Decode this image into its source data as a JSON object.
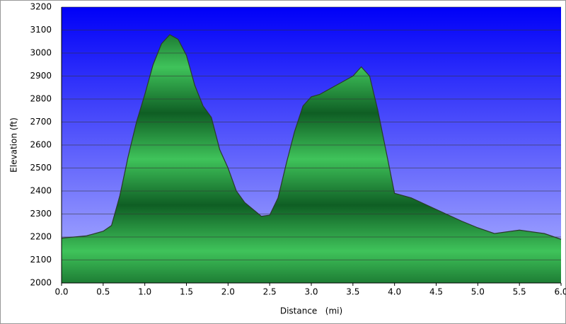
{
  "chart_data": {
    "type": "area",
    "x_label": "Distance   (mi)",
    "y_label": "Elevation (ft)",
    "x": [
      0.0,
      0.3,
      0.5,
      0.6,
      0.7,
      0.8,
      0.9,
      1.0,
      1.1,
      1.2,
      1.3,
      1.4,
      1.5,
      1.6,
      1.7,
      1.8,
      1.9,
      2.0,
      2.1,
      2.2,
      2.3,
      2.4,
      2.5,
      2.6,
      2.7,
      2.8,
      2.9,
      3.0,
      3.1,
      3.2,
      3.3,
      3.4,
      3.5,
      3.6,
      3.7,
      3.8,
      3.9,
      4.0,
      4.2,
      4.5,
      4.8,
      5.0,
      5.2,
      5.5,
      5.8,
      6.0
    ],
    "values": [
      2195,
      2205,
      2225,
      2250,
      2380,
      2550,
      2700,
      2820,
      2950,
      3040,
      3080,
      3060,
      2990,
      2860,
      2770,
      2720,
      2580,
      2500,
      2400,
      2350,
      2320,
      2290,
      2295,
      2370,
      2520,
      2660,
      2770,
      2810,
      2820,
      2840,
      2860,
      2880,
      2900,
      2940,
      2900,
      2750,
      2570,
      2390,
      2370,
      2320,
      2270,
      2240,
      2215,
      2230,
      2215,
      2190
    ],
    "color": "#1f9a3a",
    "xlim": [
      0,
      6
    ],
    "xticks": [
      {
        "value": 0,
        "label": "0.0"
      },
      0.5,
      {
        "value": 1,
        "label": "1.0"
      },
      1.5,
      {
        "value": 2,
        "label": "2.0"
      },
      2.5,
      {
        "value": 3,
        "label": "3.0"
      },
      3.5,
      {
        "value": 4,
        "label": "4.0"
      },
      4.5,
      {
        "value": 5,
        "label": "5.0"
      },
      5.5,
      {
        "value": 6,
        "label": "6.0"
      }
    ],
    "ylim": [
      2000,
      3200
    ],
    "yticks": [
      2000,
      2100,
      2200,
      2300,
      2400,
      2500,
      2600,
      2700,
      2800,
      2900,
      3000,
      3100,
      3200
    ],
    "grid": true
  }
}
